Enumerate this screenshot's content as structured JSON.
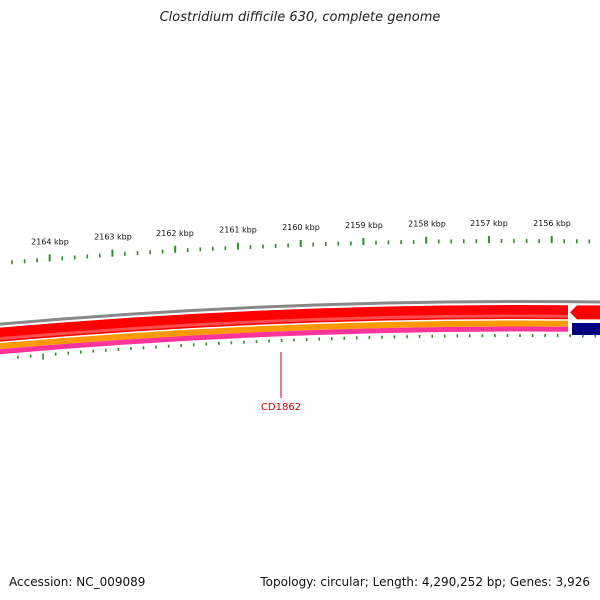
{
  "title": "Clostridium difficile 630, complete genome",
  "scale_labels": [
    "2164 kbp",
    "2163 kbp",
    "2162 kbp",
    "2161 kbp",
    "2160 kbp",
    "2159 kbp",
    "2158 kbp",
    "2157 kbp",
    "2156 kbp"
  ],
  "gene_label": "CD1862",
  "footer": {
    "accession": "Accession: NC_009089",
    "summary": "Topology: circular; Length: 4,290,252 bp; Genes: 3,926"
  },
  "colors": {
    "tick": "#2e8b2e",
    "backbone": "#888888",
    "cds_forward": "#ff0000",
    "orange_track": "#ff9900",
    "pink_track": "#ff3399",
    "navy_feature": "#000080",
    "gene_label": "#cc0000"
  }
}
